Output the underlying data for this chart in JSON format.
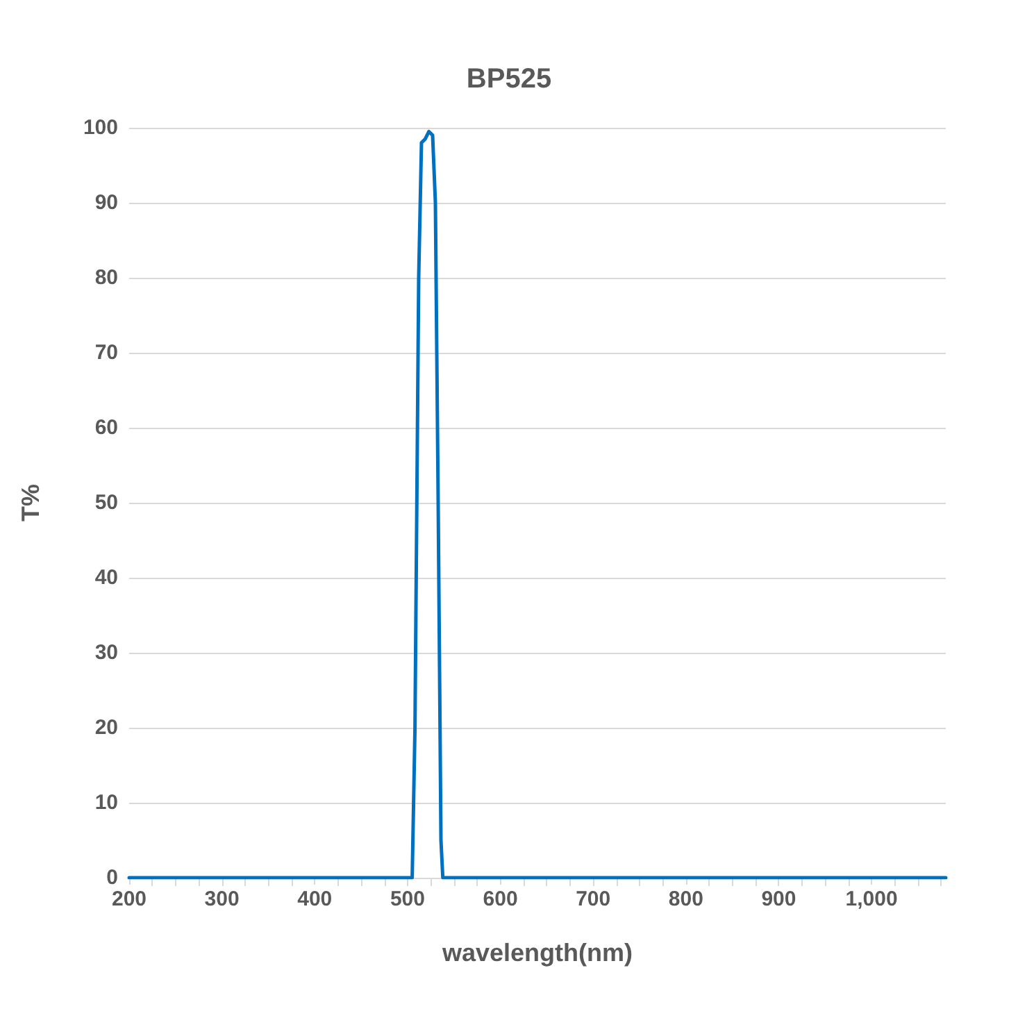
{
  "chart_data": {
    "type": "line",
    "title": "BP525",
    "xlabel": "wavelength(nm)",
    "ylabel": "T%",
    "xlim": [
      200,
      1080
    ],
    "xticks": [
      200,
      300,
      400,
      500,
      600,
      700,
      800,
      900,
      {
        "value": 1000,
        "label": "1,000"
      }
    ],
    "ylim": [
      0,
      100
    ],
    "yticks": [
      0,
      10,
      20,
      30,
      40,
      50,
      60,
      70,
      80,
      90,
      100
    ],
    "grid": "y",
    "marker": "none",
    "line_style": "solid",
    "series": [
      {
        "color": "#0070c0",
        "x": [
          200,
          505,
          508,
          512,
          515,
          519,
          523,
          527,
          530,
          533,
          536,
          538,
          1080
        ],
        "values": [
          0,
          0,
          20,
          80,
          98,
          98.5,
          99.5,
          99,
          90,
          50,
          5,
          0,
          0
        ]
      }
    ]
  }
}
